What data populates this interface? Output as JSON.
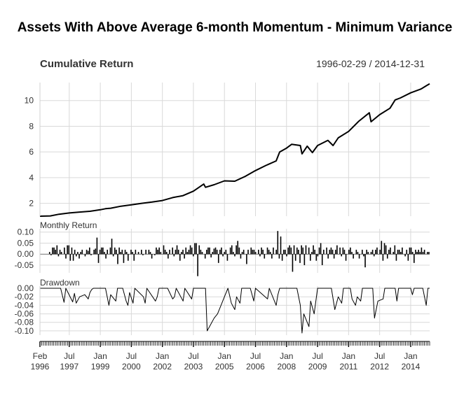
{
  "chart_data": {
    "type": "line",
    "title": "Assets With Above Average 6-month Momentum - Minimum Variance",
    "date_range": "1996-02-29 / 2014-12-31",
    "x_start": "1996-02",
    "x_end": "2014-12",
    "x_tick_labels": [
      {
        "date": "1996-02",
        "line1": "Feb",
        "line2": "1996"
      },
      {
        "date": "1997-07",
        "line1": "Jul",
        "line2": "1997"
      },
      {
        "date": "1999-01",
        "line1": "Jan",
        "line2": "1999"
      },
      {
        "date": "2000-07",
        "line1": "Jul",
        "line2": "2000"
      },
      {
        "date": "2002-01",
        "line1": "Jan",
        "line2": "2002"
      },
      {
        "date": "2003-07",
        "line1": "Jul",
        "line2": "2003"
      },
      {
        "date": "2005-01",
        "line1": "Jan",
        "line2": "2005"
      },
      {
        "date": "2006-07",
        "line1": "Jul",
        "line2": "2006"
      },
      {
        "date": "2008-01",
        "line1": "Jan",
        "line2": "2008"
      },
      {
        "date": "2009-07",
        "line1": "Jul",
        "line2": "2009"
      },
      {
        "date": "2011-01",
        "line1": "Jan",
        "line2": "2011"
      },
      {
        "date": "2012-07",
        "line1": "Jul",
        "line2": "2012"
      },
      {
        "date": "2014-01",
        "line1": "Jan",
        "line2": "2014"
      }
    ],
    "panels": [
      {
        "title": "Cumulative Return",
        "type": "line",
        "ylim": [
          1,
          11.4
        ],
        "yticks": [
          2,
          4,
          6,
          8,
          10
        ],
        "ytick_labels": [
          "2",
          "4",
          "6",
          "8",
          "10"
        ],
        "grid": true,
        "points": [
          [
            "1996-02",
            1.0
          ],
          [
            "1996-08",
            1.02
          ],
          [
            "1997-01",
            1.15
          ],
          [
            "1997-07",
            1.25
          ],
          [
            "1998-01",
            1.32
          ],
          [
            "1998-07",
            1.38
          ],
          [
            "1999-01",
            1.5
          ],
          [
            "1999-04",
            1.58
          ],
          [
            "1999-07",
            1.62
          ],
          [
            "2000-01",
            1.78
          ],
          [
            "2000-07",
            1.88
          ],
          [
            "2001-01",
            2.0
          ],
          [
            "2001-07",
            2.1
          ],
          [
            "2002-01",
            2.22
          ],
          [
            "2002-07",
            2.45
          ],
          [
            "2003-01",
            2.6
          ],
          [
            "2003-07",
            2.95
          ],
          [
            "2004-01",
            3.5
          ],
          [
            "2004-02",
            3.25
          ],
          [
            "2004-07",
            3.45
          ],
          [
            "2005-01",
            3.75
          ],
          [
            "2005-07",
            3.72
          ],
          [
            "2006-01",
            4.1
          ],
          [
            "2006-07",
            4.55
          ],
          [
            "2007-01",
            4.95
          ],
          [
            "2007-07",
            5.3
          ],
          [
            "2007-09",
            6.0
          ],
          [
            "2008-01",
            6.3
          ],
          [
            "2008-04",
            6.6
          ],
          [
            "2008-09",
            6.5
          ],
          [
            "2008-10",
            5.85
          ],
          [
            "2009-01",
            6.45
          ],
          [
            "2009-04",
            5.95
          ],
          [
            "2009-07",
            6.5
          ],
          [
            "2010-01",
            6.9
          ],
          [
            "2010-04",
            6.5
          ],
          [
            "2010-07",
            7.1
          ],
          [
            "2011-01",
            7.6
          ],
          [
            "2011-07",
            8.4
          ],
          [
            "2012-01",
            9.05
          ],
          [
            "2012-02",
            8.35
          ],
          [
            "2012-07",
            8.9
          ],
          [
            "2013-01",
            9.4
          ],
          [
            "2013-04",
            10.05
          ],
          [
            "2013-07",
            10.2
          ],
          [
            "2014-01",
            10.6
          ],
          [
            "2014-07",
            10.9
          ],
          [
            "2014-10",
            11.15
          ],
          [
            "2014-12",
            11.3
          ]
        ]
      },
      {
        "title": "Monthly Return",
        "type": "bar",
        "ylim": [
          -0.085,
          0.115
        ],
        "yticks": [
          0.1,
          0.05,
          0.0,
          -0.05
        ],
        "ytick_labels": [
          "0.10",
          "0.05",
          "0.00",
          "-0.05"
        ],
        "grid": true,
        "values": [
          0.0,
          0.0,
          0.0,
          0.0,
          0.0,
          0.0,
          0.01,
          -0.005,
          0.03,
          0.03,
          0.02,
          0.04,
          -0.01,
          0.02,
          0.01,
          0.0,
          0.03,
          -0.02,
          0.04,
          0.04,
          -0.03,
          0.03,
          -0.03,
          0.02,
          -0.01,
          0.01,
          -0.02,
          0.01,
          0.02,
          0.0,
          -0.01,
          0.02,
          0.015,
          0.03,
          -0.005,
          0.0,
          0.02,
          0.025,
          0.075,
          -0.04,
          0.02,
          0.03,
          0.03,
          0.01,
          -0.02,
          0.02,
          0.0,
          0.03,
          0.07,
          -0.01,
          0.03,
          0.02,
          -0.045,
          0.03,
          0.01,
          0.02,
          -0.04,
          0.02,
          0.01,
          -0.03,
          0.0,
          0.02,
          0.01,
          -0.03,
          0.02,
          0.0,
          0.01,
          0.0,
          0.02,
          -0.005,
          0.0,
          0.02,
          0.0,
          0.02,
          0.01,
          -0.02,
          0.0,
          -0.005,
          0.03,
          0.02,
          0.03,
          0.01,
          0.0,
          0.04,
          0.02,
          0.01,
          -0.02,
          0.02,
          0.0,
          0.03,
          -0.01,
          0.02,
          0.04,
          0.02,
          -0.03,
          0.01,
          0.02,
          -0.02,
          0.03,
          0.01,
          0.02,
          0.04,
          0.03,
          -0.01,
          0.05,
          0.05,
          -0.1,
          0.04,
          0.02,
          0.01,
          0.0,
          -0.02,
          0.02,
          0.03,
          0.03,
          -0.015,
          0.01,
          0.025,
          0.03,
          0.02,
          -0.04,
          0.02,
          0.03,
          -0.01,
          0.01,
          0.02,
          -0.03,
          0.0,
          0.03,
          0.04,
          0.01,
          -0.01,
          0.04,
          0.06,
          0.03,
          -0.02,
          0.01,
          0.02,
          0.0,
          -0.045,
          0.02,
          0.0,
          0.03,
          0.02,
          0.02,
          0.01,
          0.0,
          0.02,
          -0.01,
          0.03,
          0.02,
          -0.02,
          0.0,
          0.03,
          0.02,
          0.01,
          -0.02,
          0.03,
          0.0,
          0.02,
          0.105,
          -0.02,
          0.08,
          -0.03,
          0.02,
          0.02,
          -0.01,
          0.03,
          0.04,
          0.03,
          -0.08,
          0.04,
          -0.03,
          0.03,
          0.02,
          -0.04,
          0.04,
          0.03,
          -0.05,
          0.04,
          0.0,
          0.03,
          -0.03,
          0.01,
          0.04,
          0.02,
          -0.03,
          -0.01,
          0.03,
          0.05,
          -0.05,
          0.02,
          0.0,
          0.03,
          -0.02,
          0.02,
          0.03,
          0.02,
          -0.02,
          0.02,
          0.04,
          0.0,
          0.03,
          -0.01,
          0.03,
          0.02,
          -0.03,
          0.0,
          0.02,
          0.03,
          0.01,
          -0.02,
          0.0,
          0.02,
          0.01,
          -0.02,
          0.0,
          0.02,
          -0.01,
          -0.06,
          0.02,
          0.01,
          0.0,
          0.01,
          0.02,
          -0.01,
          0.02,
          0.03,
          0.0,
          0.02,
          0.06,
          -0.03,
          0.05,
          0.04,
          -0.02,
          0.02,
          0.03,
          0.0,
          0.01,
          0.04,
          -0.03,
          0.02,
          0.02,
          0.01,
          0.03,
          0.0,
          -0.01,
          0.02,
          -0.03,
          0.03,
          0.03,
          0.01,
          -0.04,
          0.02,
          0.01,
          0.02,
          0.01,
          0.03,
          0.01,
          0.02,
          0.0,
          0.01,
          0.01
        ]
      },
      {
        "title": "Drawdown",
        "type": "line",
        "ylim": [
          -0.11,
          0.005
        ],
        "yticks": [
          0.0,
          -0.02,
          -0.04,
          -0.06,
          -0.08,
          -0.1
        ],
        "ytick_labels": [
          "0.00",
          "-0.02",
          "-0.04",
          "-0.06",
          "-0.08",
          "-0.10"
        ],
        "grid": true,
        "points": [
          [
            "1996-02",
            0.0
          ],
          [
            "1997-02",
            0.0
          ],
          [
            "1997-04",
            -0.033
          ],
          [
            "1997-05",
            0.0
          ],
          [
            "1997-09",
            -0.032
          ],
          [
            "1997-10",
            -0.012
          ],
          [
            "1997-11",
            -0.035
          ],
          [
            "1998-01",
            -0.02
          ],
          [
            "1998-04",
            -0.015
          ],
          [
            "1998-06",
            -0.025
          ],
          [
            "1998-07",
            -0.01
          ],
          [
            "1998-08",
            -0.003
          ],
          [
            "1998-09",
            0.0
          ],
          [
            "1999-04",
            0.0
          ],
          [
            "1999-06",
            -0.04
          ],
          [
            "1999-07",
            -0.015
          ],
          [
            "1999-10",
            -0.03
          ],
          [
            "1999-11",
            0.0
          ],
          [
            "2000-02",
            0.0
          ],
          [
            "2000-04",
            -0.03
          ],
          [
            "2000-05",
            -0.04
          ],
          [
            "2000-06",
            -0.01
          ],
          [
            "2000-08",
            -0.035
          ],
          [
            "2000-09",
            0.0
          ],
          [
            "2001-02",
            -0.02
          ],
          [
            "2001-03",
            -0.035
          ],
          [
            "2001-04",
            0.0
          ],
          [
            "2001-09",
            -0.03
          ],
          [
            "2001-10",
            -0.02
          ],
          [
            "2001-11",
            0.0
          ],
          [
            "2002-04",
            0.0
          ],
          [
            "2002-07",
            -0.025
          ],
          [
            "2002-08",
            -0.02
          ],
          [
            "2002-09",
            0.0
          ],
          [
            "2003-01",
            -0.03
          ],
          [
            "2003-02",
            0.0
          ],
          [
            "2003-06",
            -0.025
          ],
          [
            "2003-07",
            0.0
          ],
          [
            "2004-02",
            0.0
          ],
          [
            "2004-03",
            -0.1
          ],
          [
            "2004-05",
            -0.085
          ],
          [
            "2004-07",
            -0.07
          ],
          [
            "2004-09",
            -0.06
          ],
          [
            "2004-11",
            -0.04
          ],
          [
            "2005-01",
            -0.02
          ],
          [
            "2005-03",
            0.0
          ],
          [
            "2005-05",
            -0.035
          ],
          [
            "2005-07",
            -0.05
          ],
          [
            "2005-08",
            -0.02
          ],
          [
            "2005-10",
            -0.035
          ],
          [
            "2005-11",
            0.0
          ],
          [
            "2006-04",
            0.0
          ],
          [
            "2006-06",
            -0.03
          ],
          [
            "2006-07",
            0.0
          ],
          [
            "2007-02",
            -0.025
          ],
          [
            "2007-03",
            0.0
          ],
          [
            "2007-07",
            -0.04
          ],
          [
            "2007-08",
            -0.015
          ],
          [
            "2007-09",
            0.0
          ],
          [
            "2008-07",
            0.0
          ],
          [
            "2008-09",
            -0.04
          ],
          [
            "2008-10",
            -0.105
          ],
          [
            "2008-11",
            -0.06
          ],
          [
            "2009-02",
            -0.09
          ],
          [
            "2009-03",
            -0.03
          ],
          [
            "2009-05",
            -0.06
          ],
          [
            "2009-07",
            0.0
          ],
          [
            "2010-03",
            0.0
          ],
          [
            "2010-05",
            -0.05
          ],
          [
            "2010-07",
            -0.02
          ],
          [
            "2010-09",
            -0.035
          ],
          [
            "2010-10",
            0.0
          ],
          [
            "2011-02",
            0.0
          ],
          [
            "2011-03",
            -0.025
          ],
          [
            "2011-05",
            -0.04
          ],
          [
            "2011-06",
            -0.02
          ],
          [
            "2011-08",
            -0.03
          ],
          [
            "2011-09",
            0.0
          ],
          [
            "2012-03",
            0.0
          ],
          [
            "2012-04",
            -0.07
          ],
          [
            "2012-05",
            -0.05
          ],
          [
            "2012-06",
            -0.03
          ],
          [
            "2012-09",
            -0.025
          ],
          [
            "2012-10",
            0.0
          ],
          [
            "2013-04",
            0.0
          ],
          [
            "2013-05",
            -0.03
          ],
          [
            "2013-06",
            0.0
          ],
          [
            "2014-01",
            0.0
          ],
          [
            "2014-02",
            -0.015
          ],
          [
            "2014-03",
            0.0
          ],
          [
            "2014-08",
            0.0
          ],
          [
            "2014-10",
            -0.04
          ],
          [
            "2014-11",
            0.0
          ],
          [
            "2014-12",
            0.0
          ]
        ]
      }
    ]
  }
}
